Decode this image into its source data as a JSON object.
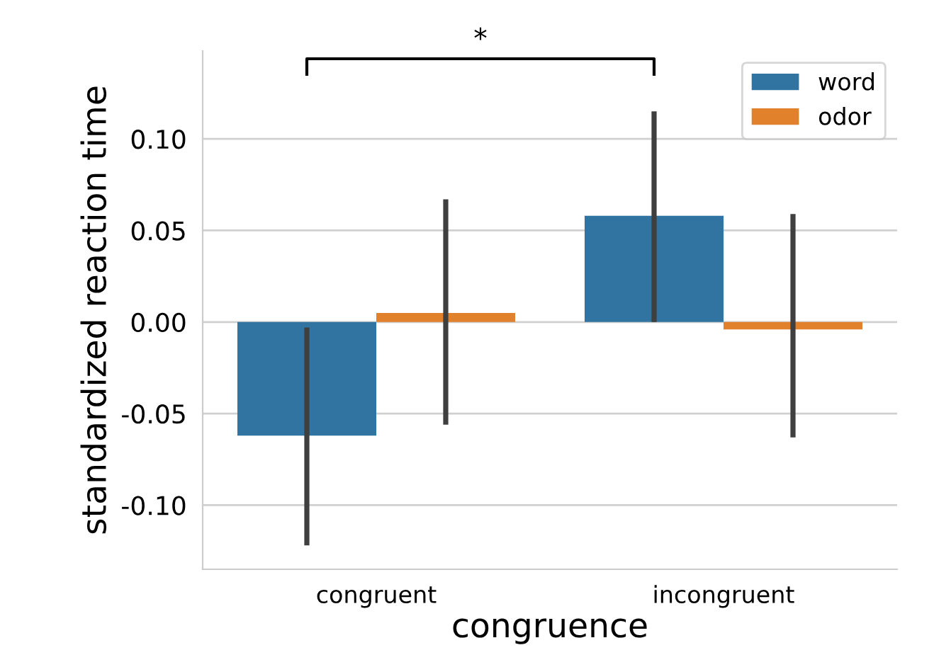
{
  "chart_data": {
    "type": "bar",
    "xlabel": "congruence",
    "ylabel": "standardized reaction time",
    "categories": [
      "congruent",
      "incongruent"
    ],
    "series": [
      {
        "name": "word",
        "color": "#3274a1",
        "values": [
          -0.062,
          0.058
        ],
        "errors": [
          [
            -0.122,
            -0.003
          ],
          [
            0.0,
            0.115
          ]
        ]
      },
      {
        "name": "odor",
        "color": "#e1812c",
        "values": [
          0.005,
          -0.004
        ],
        "errors": [
          [
            -0.056,
            0.067
          ],
          [
            -0.063,
            0.059
          ]
        ]
      }
    ],
    "ylim": [
      -0.135,
      0.148
    ],
    "yticks": [
      {
        "value": -0.1,
        "label": "-0.10"
      },
      {
        "value": -0.05,
        "label": "-0.05"
      },
      {
        "value": 0,
        "label": "0.00"
      },
      {
        "value": 0.05,
        "label": "0.05"
      },
      {
        "value": 0.1,
        "label": "0.10"
      }
    ],
    "grid": "y",
    "legend": "top right",
    "annotations": [
      "*"
    ]
  }
}
